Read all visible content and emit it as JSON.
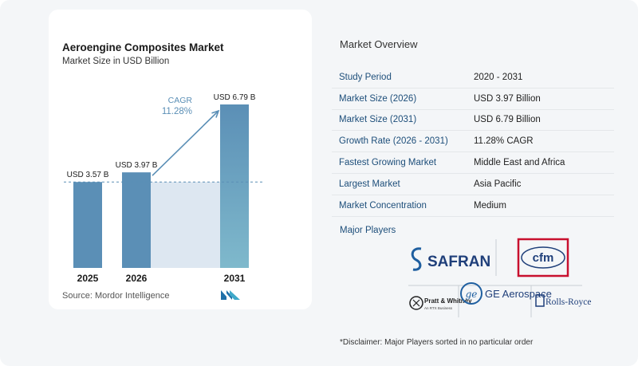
{
  "chart_data": {
    "type": "bar",
    "title": "Aeroengine Composites Market",
    "subtitle": "Market Size in USD Billion",
    "categories": [
      "2025",
      "2026",
      "2031"
    ],
    "values": [
      3.57,
      3.97,
      6.79
    ],
    "data_labels": [
      "USD 3.57 B",
      "USD 3.97 B",
      "USD 6.79 B"
    ],
    "cagr_label": "CAGR",
    "cagr_value": "11.28%",
    "ylim": [
      0,
      7
    ],
    "grid": false,
    "colors": {
      "bar": "#5b8fb6",
      "bar_light": "#7fb9cc",
      "shade": "#dde7f1",
      "arrow": "#5b8fb6",
      "baseline": "#5b8fb6"
    }
  },
  "source": "Source:  Mordor Intelligence",
  "overview": {
    "title": "Market Overview",
    "rows": [
      {
        "label": "Study Period",
        "value": "2020 - 2031"
      },
      {
        "label": "Market Size (2026)",
        "value": "USD 3.97 Billion"
      },
      {
        "label": "Market Size (2031)",
        "value": "USD 6.79 Billion"
      },
      {
        "label": "Growth Rate (2026 - 2031)",
        "value": "11.28% CAGR"
      },
      {
        "label": "Fastest Growing Market",
        "value": "Middle East and Africa"
      },
      {
        "label": "Largest Market",
        "value": "Asia Pacific"
      },
      {
        "label": "Market Concentration",
        "value": "Medium"
      }
    ]
  },
  "players": {
    "title": "Major Players",
    "logos": [
      "SAFRAN",
      "cfm",
      "Pratt & Whitney",
      "GE Aerospace",
      "Rolls-Royce"
    ],
    "pw_sub": "An RTX Business"
  },
  "disclaimer": "*Disclaimer: Major Players sorted in no particular order"
}
